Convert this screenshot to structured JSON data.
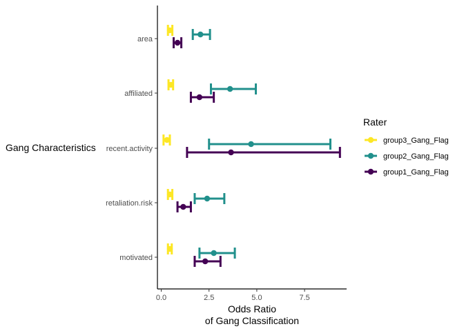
{
  "chart_data": {
    "type": "errorbar",
    "orientation": "horizontal",
    "title": "",
    "xlabel_line1": "Odds Ratio",
    "xlabel_line2": "of Gang Classification",
    "ylabel": "Gang Characteristics",
    "xlim": [
      -0.2,
      9.7
    ],
    "xticks": [
      0.0,
      2.5,
      5.0,
      7.5
    ],
    "xtick_labels": [
      "0.0",
      "2.5",
      "5.0",
      "7.5"
    ],
    "categories": [
      "area",
      "affiliated",
      "recent.activity",
      "retaliation.risk",
      "motivated"
    ],
    "grid": false,
    "legend": {
      "title": "Rater",
      "position": "right",
      "entries": [
        "group3_Gang_Flag",
        "group2_Gang_Flag",
        "group1_Gang_Flag"
      ]
    },
    "series": [
      {
        "name": "group3_Gang_Flag",
        "color": "#fde725",
        "estimate": [
          0.45,
          0.5,
          0.3,
          0.45,
          0.45
        ],
        "lower": [
          0.35,
          0.38,
          0.12,
          0.35,
          0.35
        ],
        "upper": [
          0.58,
          0.62,
          0.45,
          0.58,
          0.55
        ]
      },
      {
        "name": "group2_Gang_Flag",
        "color": "#21908c",
        "estimate": [
          2.05,
          3.6,
          4.7,
          2.4,
          2.75
        ],
        "lower": [
          1.65,
          2.6,
          2.5,
          1.75,
          2.0
        ],
        "upper": [
          2.55,
          4.95,
          8.85,
          3.3,
          3.85
        ]
      },
      {
        "name": "group1_Gang_Flag",
        "color": "#440154",
        "estimate": [
          0.85,
          2.0,
          3.65,
          1.15,
          2.3
        ],
        "lower": [
          0.65,
          1.55,
          1.35,
          0.85,
          1.75
        ],
        "upper": [
          1.05,
          2.75,
          9.35,
          1.55,
          3.1
        ]
      }
    ]
  }
}
